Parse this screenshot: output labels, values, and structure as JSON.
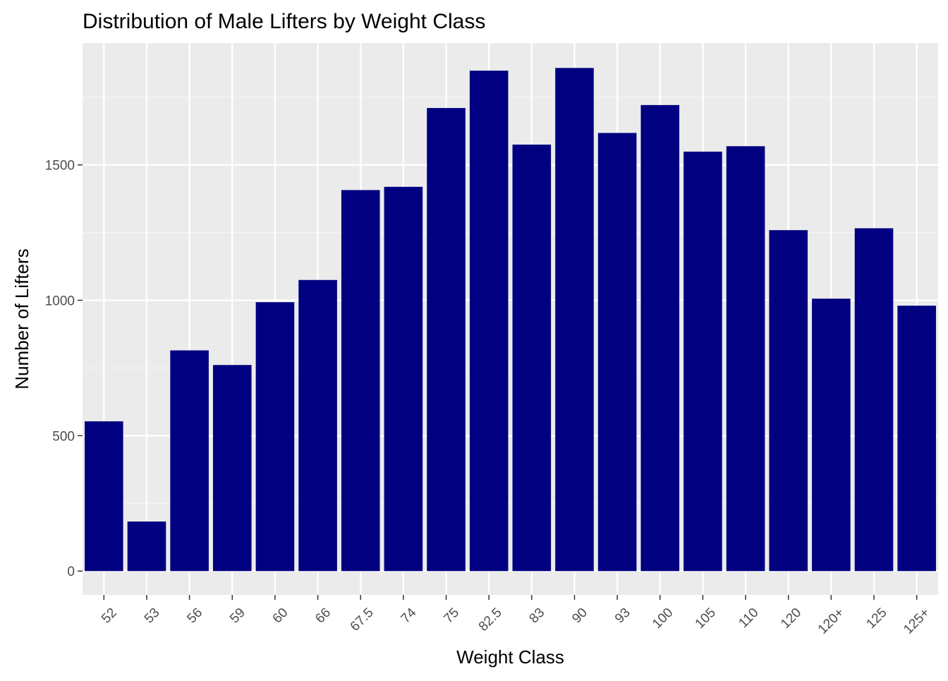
{
  "chart_data": {
    "type": "bar",
    "title": "Distribution of Male Lifters by Weight Class",
    "xlabel": "Weight Class",
    "ylabel": "Number of Lifters",
    "categories": [
      "52",
      "53",
      "56",
      "59",
      "60",
      "66",
      "67.5",
      "74",
      "75",
      "82.5",
      "83",
      "90",
      "93",
      "100",
      "105",
      "110",
      "120",
      "120+",
      "125",
      "125+"
    ],
    "values": [
      553,
      183,
      815,
      761,
      993,
      1075,
      1407,
      1419,
      1710,
      1848,
      1575,
      1858,
      1618,
      1721,
      1549,
      1569,
      1259,
      1006,
      1266,
      980
    ],
    "yticks": [
      0,
      500,
      1000,
      1500
    ],
    "ylim": [
      -88,
      1950
    ],
    "grid": true,
    "legend": "none",
    "colors": {
      "bar": "#000080",
      "panel": "#ebebeb",
      "grid_major": "#ffffff",
      "grid_minor": "#f5f5f5",
      "tick_text": "#4d4d4d"
    }
  }
}
